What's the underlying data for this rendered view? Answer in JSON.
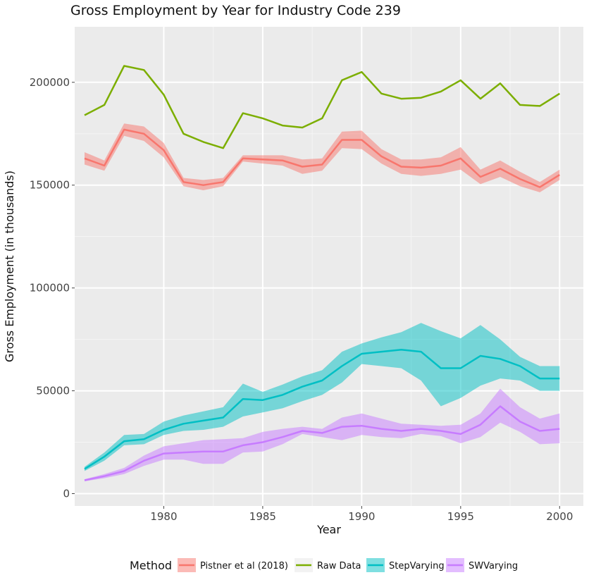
{
  "chart_data": {
    "type": "line",
    "title": "Gross Employment by Year for Industry Code 239",
    "xlabel": "Year",
    "ylabel": "Gross Employment (in thousands)",
    "x": [
      1976,
      1977,
      1978,
      1979,
      1980,
      1981,
      1982,
      1983,
      1984,
      1985,
      1986,
      1987,
      1988,
      1989,
      1990,
      1991,
      1992,
      1993,
      1994,
      1995,
      1996,
      1997,
      1998,
      1999,
      2000
    ],
    "xticks": [
      1980,
      1985,
      1990,
      1995,
      2000
    ],
    "yticks": [
      0,
      50000,
      100000,
      150000,
      200000
    ],
    "xlim": [
      1975.5,
      2001.2
    ],
    "ylim": [
      -6000,
      227000
    ],
    "grid": true,
    "legend": {
      "title": "Method",
      "position": "bottom"
    },
    "series": [
      {
        "name": "Pistner et al (2018)",
        "color": "#F8766D",
        "values": [
          163000,
          159500,
          177000,
          175000,
          167000,
          151500,
          150000,
          151500,
          163000,
          162500,
          162000,
          159000,
          160000,
          172000,
          172000,
          164000,
          159000,
          158500,
          159500,
          163000,
          154000,
          158000,
          153000,
          149000,
          155000
        ],
        "lower": [
          160000,
          157000,
          174000,
          171500,
          163500,
          149500,
          147500,
          149500,
          161500,
          160500,
          159500,
          155500,
          157000,
          168000,
          167500,
          160500,
          155500,
          154500,
          155500,
          157500,
          150500,
          154000,
          149500,
          146500,
          152500
        ],
        "upper": [
          166000,
          162000,
          180000,
          178500,
          170500,
          153500,
          152500,
          153500,
          164500,
          164500,
          164500,
          162500,
          163000,
          176000,
          176500,
          167500,
          162500,
          162500,
          163500,
          168500,
          157500,
          162000,
          156500,
          151500,
          157500
        ]
      },
      {
        "name": "Raw Data",
        "color": "#7CAE00",
        "values": [
          184000,
          189000,
          208000,
          206000,
          194000,
          175000,
          171000,
          168000,
          185000,
          182500,
          179000,
          178000,
          182500,
          201000,
          205000,
          194500,
          192000,
          192500,
          195500,
          201000,
          192000,
          199500,
          189000,
          188500,
          194500
        ]
      },
      {
        "name": "StepVarying",
        "color": "#00BFC4",
        "values": [
          12000,
          18000,
          25500,
          26500,
          31000,
          34000,
          35500,
          37000,
          46000,
          45500,
          48000,
          52000,
          55000,
          62000,
          68000,
          69000,
          70000,
          69000,
          61000,
          61000,
          67000,
          65500,
          62000,
          56000,
          56000
        ],
        "lower": [
          11000,
          16000,
          23500,
          24000,
          28500,
          30500,
          31000,
          32500,
          37500,
          39500,
          41500,
          45000,
          48000,
          54000,
          63000,
          62000,
          61000,
          55000,
          42500,
          46500,
          52500,
          56000,
          55000,
          50000,
          50000
        ],
        "upper": [
          13000,
          20000,
          28500,
          29000,
          35000,
          38000,
          40000,
          42000,
          53500,
          49500,
          53000,
          57000,
          60000,
          69000,
          73000,
          76000,
          78500,
          83000,
          79000,
          75500,
          82000,
          75000,
          66500,
          62000,
          62000
        ]
      },
      {
        "name": "SWVarying",
        "color": "#C77CFF",
        "values": [
          6500,
          8500,
          11000,
          16000,
          19500,
          20000,
          20500,
          20500,
          23500,
          25000,
          27500,
          30500,
          29500,
          32500,
          33000,
          31500,
          30500,
          31500,
          30500,
          29000,
          33500,
          42500,
          35000,
          30500,
          31500
        ],
        "lower": [
          6000,
          7500,
          9500,
          13500,
          16500,
          16500,
          14500,
          14500,
          20000,
          20500,
          24000,
          29000,
          27500,
          26000,
          28500,
          27500,
          27000,
          29000,
          28000,
          24500,
          27500,
          34500,
          30000,
          24000,
          24500
        ],
        "upper": [
          7000,
          9500,
          12500,
          18500,
          23000,
          24500,
          26000,
          26500,
          27000,
          30000,
          31500,
          32500,
          31500,
          37000,
          39000,
          36500,
          34000,
          33500,
          33000,
          33500,
          39000,
          51000,
          42000,
          36500,
          39000
        ]
      }
    ]
  }
}
